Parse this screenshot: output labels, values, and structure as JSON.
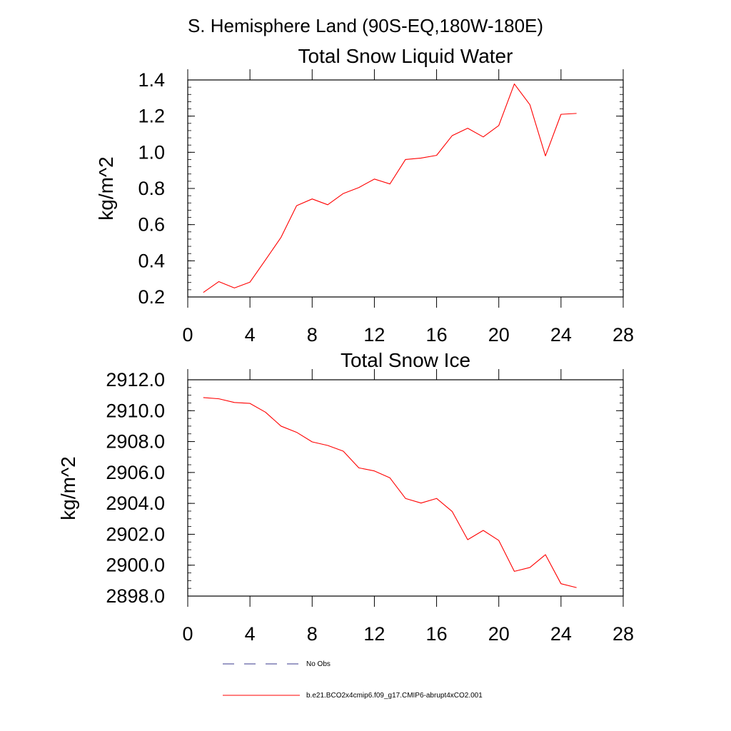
{
  "suptitle": "S. Hemisphere Land (90S-EQ,180W-180E)",
  "colors": {
    "series": "#ff0000",
    "obs": "#3a3a8c",
    "axis": "#000000"
  },
  "chart_data": [
    {
      "type": "line",
      "title": "Total Snow Liquid Water",
      "xlabel": "",
      "ylabel": "kg/m^2",
      "xlim": [
        0,
        28
      ],
      "ylim": [
        0.2,
        1.4
      ],
      "xticks": [
        0,
        4,
        8,
        12,
        16,
        20,
        24,
        28
      ],
      "xtick_labels": [
        "0",
        "4",
        "8",
        "12",
        "16",
        "20",
        "24",
        "28"
      ],
      "yticks": [
        0.2,
        0.4,
        0.6,
        0.8,
        1.0,
        1.2,
        1.4
      ],
      "ytick_labels": [
        "0.2",
        "0.4",
        "0.6",
        "0.8",
        "1.0",
        "1.2",
        "1.4"
      ],
      "yminor_step": 0.04,
      "series": [
        {
          "name": "b.e21.BCO2x4cmip6.f09_g17.CMIP6-abrupt4xCO2.001",
          "x": [
            1,
            2,
            3,
            4,
            5,
            6,
            7,
            8,
            9,
            10,
            11,
            12,
            13,
            14,
            15,
            16,
            17,
            18,
            19,
            20,
            21,
            22,
            23,
            24,
            25
          ],
          "values": [
            0.225,
            0.285,
            0.25,
            0.282,
            0.405,
            0.53,
            0.705,
            0.742,
            0.71,
            0.772,
            0.805,
            0.852,
            0.825,
            0.96,
            0.968,
            0.983,
            1.092,
            1.133,
            1.085,
            1.148,
            1.378,
            1.263,
            0.98,
            1.21,
            1.215
          ]
        }
      ]
    },
    {
      "type": "line",
      "title": "Total Snow Ice",
      "xlabel": "",
      "ylabel": "kg/m^2",
      "xlim": [
        0,
        28
      ],
      "ylim": [
        2898.0,
        2912.0
      ],
      "xticks": [
        0,
        4,
        8,
        12,
        16,
        20,
        24,
        28
      ],
      "xtick_labels": [
        "0",
        "4",
        "8",
        "12",
        "16",
        "20",
        "24",
        "28"
      ],
      "yticks": [
        2898,
        2900,
        2902,
        2904,
        2906,
        2908,
        2910,
        2912
      ],
      "ytick_labels": [
        "2898.0",
        "2900.0",
        "2902.0",
        "2904.0",
        "2906.0",
        "2908.0",
        "2910.0",
        "2912.0"
      ],
      "yminor_step": 0.5,
      "series": [
        {
          "name": "b.e21.BCO2x4cmip6.f09_g17.CMIP6-abrupt4xCO2.001",
          "x": [
            1,
            2,
            3,
            4,
            5,
            6,
            7,
            8,
            9,
            10,
            11,
            12,
            13,
            14,
            15,
            16,
            17,
            18,
            19,
            20,
            21,
            22,
            23,
            24,
            25
          ],
          "values": [
            2910.85,
            2910.77,
            2910.53,
            2910.47,
            2909.9,
            2909.0,
            2908.6,
            2907.98,
            2907.75,
            2907.38,
            2906.3,
            2906.1,
            2905.65,
            2904.32,
            2904.02,
            2904.32,
            2903.48,
            2901.65,
            2902.25,
            2901.6,
            2899.6,
            2899.85,
            2900.68,
            2898.8,
            2898.55
          ]
        }
      ]
    }
  ],
  "legend": [
    {
      "label": "No Obs",
      "style": "dashed"
    },
    {
      "label": "b.e21.BCO2x4cmip6.f09_g17.CMIP6-abrupt4xCO2.001",
      "style": "solid"
    }
  ]
}
